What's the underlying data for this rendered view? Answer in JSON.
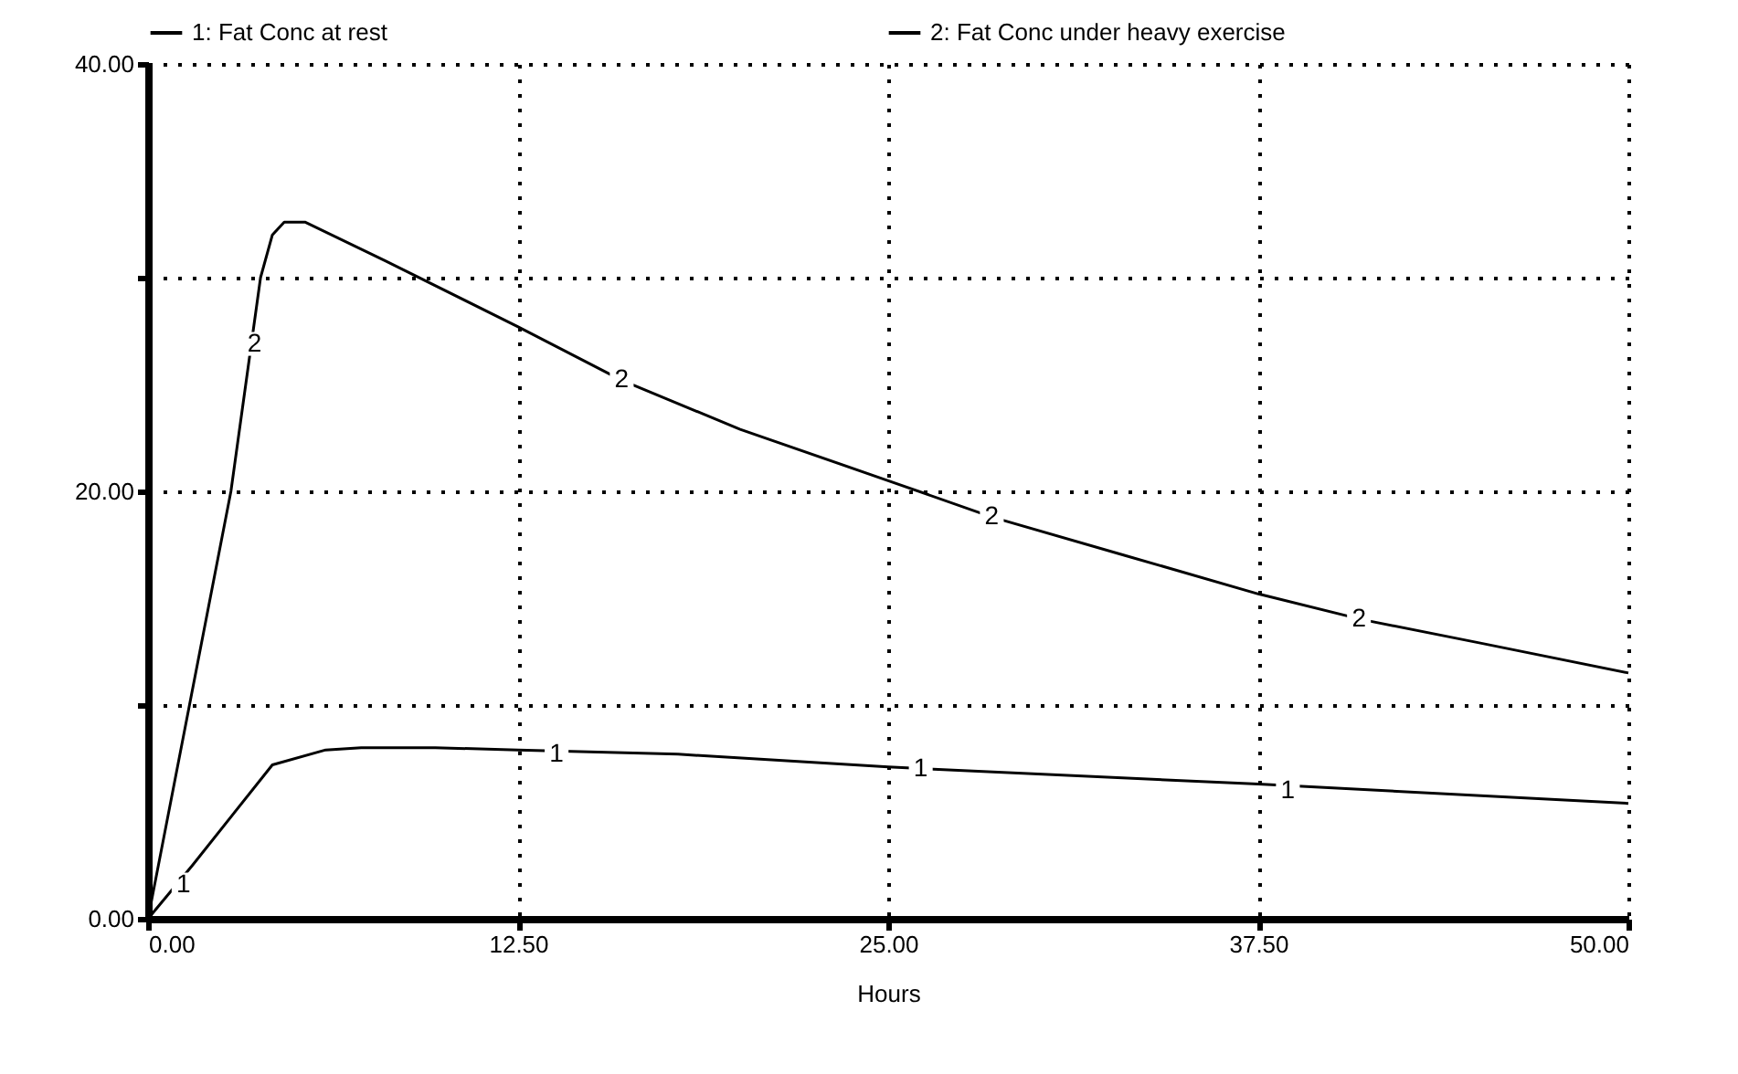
{
  "chart_data": {
    "type": "line",
    "xlabel": "Hours",
    "legend": "top",
    "grid": true,
    "marker": "none",
    "line_style": "solid",
    "xlim": [
      0,
      50
    ],
    "xticks": [
      {
        "value": 0,
        "label": "0.00"
      },
      {
        "value": 12.5,
        "label": "12.50"
      },
      {
        "value": 25,
        "label": "25.00"
      },
      {
        "value": 37.5,
        "label": "37.50"
      },
      {
        "value": 50,
        "label": "50.00"
      }
    ],
    "ylim": [
      0,
      40
    ],
    "yticks": [
      {
        "value": 0,
        "label": "0.00"
      },
      {
        "value": 10,
        "label": null
      },
      {
        "value": 20,
        "label": "20.00"
      },
      {
        "value": 30,
        "label": null
      },
      {
        "value": 40,
        "label": "40.00"
      }
    ],
    "series": [
      {
        "name": "1: Fat Conc at rest",
        "color": "#000000",
        "x": [
          0,
          1.5,
          4.2,
          6,
          7.2,
          9.7,
          12.5,
          17.9,
          25,
          37.5,
          50
        ],
        "values": [
          0,
          2.5,
          7.2,
          7.9,
          8.0,
          8.0,
          7.9,
          7.7,
          7.1,
          6.3,
          5.4
        ]
      },
      {
        "name": "2: Fat Conc under heavy exercise",
        "color": "#000000",
        "x": [
          0,
          1.4,
          2.8,
          3.8,
          4.2,
          4.6,
          5.3,
          8,
          12.5,
          16,
          20,
          25,
          28.5,
          33,
          37.5,
          41,
          45,
          50
        ],
        "values": [
          0,
          10,
          20,
          30,
          32,
          32.6,
          32.6,
          30.8,
          27.7,
          25.2,
          22.9,
          20.5,
          18.8,
          17,
          15.2,
          14,
          12.9,
          11.5
        ]
      }
    ],
    "annotations": [
      {
        "text": "1",
        "x": 1.2,
        "y": 1.6
      },
      {
        "text": "1",
        "x": 13.8,
        "y": 7.7
      },
      {
        "text": "1",
        "x": 26.1,
        "y": 7.0
      },
      {
        "text": "1",
        "x": 38.5,
        "y": 6.0
      },
      {
        "text": "2",
        "x": 3.6,
        "y": 26.9
      },
      {
        "text": "2",
        "x": 16,
        "y": 25.2
      },
      {
        "text": "2",
        "x": 28.5,
        "y": 18.8
      },
      {
        "text": "2",
        "x": 40.9,
        "y": 14.0
      }
    ]
  }
}
